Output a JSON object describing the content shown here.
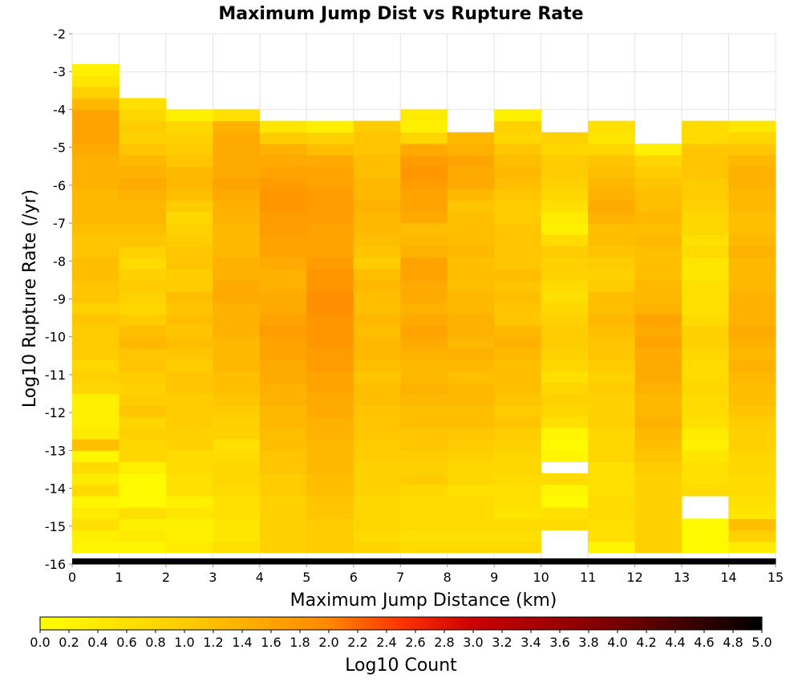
{
  "chart_data": {
    "type": "heatmap",
    "title": "Maximum Jump Dist vs Rupture Rate",
    "xlabel": "Maximum Jump Distance (km)",
    "ylabel": "Log10 Rupture Rate (/yr)",
    "colorbar_label": "Log10 Count",
    "xlim": [
      0,
      15
    ],
    "ylim": [
      -16,
      -2
    ],
    "x_ticks": [
      "0",
      "1",
      "2",
      "3",
      "4",
      "5",
      "6",
      "7",
      "8",
      "9",
      "10",
      "11",
      "12",
      "13",
      "14",
      "15"
    ],
    "y_ticks": [
      "-2",
      "-3",
      "-4",
      "-5",
      "-6",
      "-7",
      "-8",
      "-9",
      "-10",
      "-11",
      "-12",
      "-13",
      "-14",
      "-15",
      "-16"
    ],
    "color_range": [
      0.0,
      5.0
    ],
    "colorbar_ticks": [
      "0.0",
      "0.2",
      "0.4",
      "0.6",
      "0.8",
      "1.0",
      "1.2",
      "1.4",
      "1.6",
      "1.8",
      "2.0",
      "2.2",
      "2.4",
      "2.6",
      "2.8",
      "3.0",
      "3.2",
      "3.4",
      "3.6",
      "3.8",
      "4.0",
      "4.2",
      "4.4",
      "4.6",
      "4.8",
      "5.0"
    ],
    "colormap": [
      "#ffff00",
      "#ff9900",
      "#ff0000",
      "#880000",
      "#000000"
    ],
    "x_bins": [
      0,
      1,
      2,
      3,
      4,
      5,
      6,
      7,
      8,
      9,
      10,
      11,
      12,
      13,
      14
    ],
    "y_bin_width": 0.3,
    "y_bins_start": -16.0,
    "columns": [
      {
        "x": 0,
        "bottom": -16.0,
        "counts": [
          5.0,
          0.2,
          0.3,
          0.6,
          0.4,
          0.2,
          0.7,
          0.4,
          0.7,
          0.2,
          1.2,
          0.4,
          0.3,
          0.3,
          0.3,
          0.8,
          0.9,
          0.8,
          1.0,
          1.0,
          1.0,
          1.1,
          0.9,
          1.1,
          1.1,
          1.2,
          1.2,
          1.1,
          1.1,
          1.2,
          1.3,
          1.3,
          1.3,
          1.4,
          1.4,
          1.4,
          1.5,
          1.6,
          1.6,
          1.6,
          1.3,
          0.9,
          0.5,
          0.3
        ]
      },
      {
        "x": 1,
        "bottom": -16.0,
        "counts": [
          5.0,
          0.2,
          0.4,
          0.3,
          0.6,
          0.1,
          0.1,
          0.1,
          0.3,
          0.8,
          0.8,
          0.9,
          0.8,
          1.1,
          1.0,
          0.9,
          1.0,
          1.1,
          1.1,
          1.3,
          1.2,
          1.0,
          0.8,
          0.9,
          1.0,
          0.9,
          0.7,
          0.9,
          1.1,
          1.2,
          1.3,
          1.3,
          1.4,
          1.5,
          1.4,
          1.3,
          1.1,
          0.9,
          1.0,
          0.8,
          0.6
        ]
      },
      {
        "x": 2,
        "bottom": -16.0,
        "counts": [
          5.0,
          0.4,
          0.3,
          0.3,
          0.5,
          0.3,
          0.6,
          0.6,
          0.7,
          0.7,
          0.9,
          0.9,
          1.0,
          1.0,
          1.0,
          1.1,
          1.1,
          1.0,
          1.1,
          1.2,
          1.1,
          1.2,
          1.1,
          1.2,
          1.0,
          1.0,
          1.1,
          1.1,
          1.0,
          0.9,
          0.8,
          1.0,
          1.2,
          1.3,
          1.3,
          1.1,
          1.0,
          0.9,
          0.8,
          0.3
        ]
      },
      {
        "x": 3,
        "bottom": -16.0,
        "counts": [
          5.0,
          0.6,
          0.5,
          0.5,
          0.6,
          0.6,
          0.7,
          0.8,
          0.8,
          0.7,
          0.6,
          0.9,
          0.9,
          1.0,
          1.1,
          1.2,
          1.2,
          1.3,
          1.3,
          1.3,
          1.4,
          1.4,
          1.4,
          1.5,
          1.5,
          1.4,
          1.4,
          1.3,
          1.3,
          1.3,
          1.4,
          1.4,
          1.5,
          1.6,
          1.5,
          1.5,
          1.5,
          1.5,
          1.4,
          0.6
        ]
      },
      {
        "x": 4,
        "bottom": -16.0,
        "counts": [
          5.0,
          0.9,
          0.9,
          0.9,
          0.9,
          0.9,
          1.0,
          1.0,
          1.1,
          1.1,
          1.2,
          1.2,
          1.3,
          1.3,
          1.4,
          1.4,
          1.5,
          1.5,
          1.6,
          1.6,
          1.7,
          1.6,
          1.5,
          1.5,
          1.4,
          1.4,
          1.5,
          1.6,
          1.6,
          1.7,
          1.7,
          1.8,
          1.8,
          1.7,
          1.6,
          1.5,
          1.4,
          1.0,
          0.5
        ]
      },
      {
        "x": 5,
        "bottom": -16.0,
        "counts": [
          5.0,
          1.0,
          1.0,
          1.0,
          1.1,
          1.1,
          1.2,
          1.2,
          1.3,
          1.3,
          1.3,
          1.4,
          1.4,
          1.5,
          1.5,
          1.6,
          1.6,
          1.7,
          1.7,
          1.8,
          1.8,
          1.8,
          1.9,
          1.9,
          1.8,
          1.8,
          1.7,
          1.6,
          1.6,
          1.6,
          1.7,
          1.7,
          1.7,
          1.6,
          1.6,
          1.5,
          1.2,
          0.9,
          0.3
        ]
      },
      {
        "x": 6,
        "bottom": -16.0,
        "counts": [
          5.0,
          0.8,
          0.7,
          0.8,
          0.8,
          0.8,
          0.9,
          0.9,
          0.9,
          1.0,
          1.0,
          1.1,
          1.1,
          1.1,
          1.2,
          1.2,
          1.1,
          1.2,
          1.3,
          1.3,
          1.2,
          1.3,
          1.2,
          1.2,
          1.3,
          1.2,
          1.0,
          1.1,
          1.2,
          1.3,
          1.3,
          1.4,
          1.3,
          1.3,
          1.2,
          1.2,
          1.1,
          1.1,
          1.0
        ]
      },
      {
        "x": 7,
        "bottom": -16.0,
        "counts": [
          5.0,
          0.7,
          0.6,
          0.7,
          0.7,
          0.7,
          0.8,
          1.0,
          0.9,
          1.0,
          1.1,
          1.1,
          1.2,
          1.2,
          1.3,
          1.4,
          1.3,
          1.3,
          1.4,
          1.5,
          1.6,
          1.5,
          1.4,
          1.5,
          1.5,
          1.6,
          1.6,
          1.4,
          1.3,
          1.2,
          1.5,
          1.6,
          1.6,
          1.7,
          1.8,
          1.7,
          1.5,
          0.8,
          0.3,
          0.4
        ]
      },
      {
        "x": 8,
        "bottom": -16.0,
        "counts": [
          5.0,
          0.7,
          0.6,
          0.7,
          0.7,
          0.7,
          0.6,
          0.8,
          0.8,
          0.9,
          1.0,
          1.1,
          1.2,
          1.2,
          1.3,
          1.3,
          1.2,
          1.3,
          1.4,
          1.3,
          1.4,
          1.4,
          1.3,
          1.3,
          1.2,
          1.2,
          1.2,
          1.3,
          1.2,
          1.2,
          1.2,
          1.1,
          1.3,
          1.5,
          1.5,
          1.6,
          1.4,
          1.3
        ]
      },
      {
        "x": 9,
        "bottom": -16.0,
        "counts": [
          5.0,
          0.7,
          0.6,
          0.7,
          0.5,
          0.6,
          0.6,
          0.7,
          0.8,
          0.8,
          0.9,
          1.0,
          1.1,
          1.0,
          1.1,
          1.2,
          1.2,
          1.2,
          1.3,
          1.4,
          1.3,
          1.1,
          1.1,
          1.2,
          1.1,
          1.2,
          1.1,
          1.1,
          1.1,
          1.1,
          1.0,
          1.0,
          1.1,
          1.2,
          1.3,
          1.2,
          1.1,
          0.8,
          0.9,
          0.3
        ]
      },
      {
        "x": 10,
        "bottom": -16.0,
        "counts": [
          5.0,
          null,
          null,
          0.7,
          0.6,
          0.1,
          0.2,
          0.7,
          null,
          0.2,
          0.1,
          0.2,
          0.6,
          0.8,
          0.9,
          0.8,
          0.6,
          0.8,
          0.9,
          1.0,
          1.0,
          0.9,
          0.8,
          0.6,
          0.7,
          0.9,
          0.9,
          1.0,
          0.7,
          0.3,
          0.4,
          0.6,
          0.8,
          0.9,
          1.0,
          1.0,
          0.8,
          0.9
        ]
      },
      {
        "x": 11,
        "bottom": -16.0,
        "counts": [
          5.0,
          0.2,
          0.6,
          0.6,
          0.7,
          0.7,
          0.6,
          0.6,
          0.6,
          0.8,
          0.8,
          0.8,
          0.9,
          0.9,
          0.9,
          1.0,
          0.9,
          1.0,
          1.1,
          1.1,
          1.2,
          1.3,
          1.2,
          1.2,
          1.0,
          0.9,
          1.0,
          1.1,
          1.2,
          1.2,
          1.4,
          1.5,
          1.4,
          1.3,
          1.2,
          1.1,
          0.8,
          0.5,
          0.6
        ]
      },
      {
        "x": 12,
        "bottom": -16.0,
        "counts": [
          5.0,
          0.9,
          0.9,
          0.9,
          0.9,
          0.9,
          0.9,
          0.9,
          1.0,
          1.1,
          1.2,
          1.3,
          1.4,
          1.3,
          1.3,
          1.4,
          1.5,
          1.5,
          1.5,
          1.6,
          1.5,
          1.6,
          1.4,
          1.3,
          1.3,
          1.2,
          1.2,
          1.2,
          1.3,
          1.2,
          1.3,
          1.2,
          1.2,
          1.1,
          1.0,
          0.8,
          0.3
        ]
      },
      {
        "x": 13,
        "bottom": -16.0,
        "counts": [
          5.0,
          0.1,
          0.1,
          0.1,
          null,
          null,
          0.7,
          0.6,
          0.6,
          0.5,
          0.3,
          0.4,
          0.6,
          0.7,
          0.7,
          0.8,
          0.7,
          0.7,
          0.8,
          0.9,
          0.9,
          0.7,
          0.6,
          0.6,
          0.6,
          0.5,
          0.5,
          0.7,
          0.6,
          0.8,
          0.8,
          0.9,
          1.0,
          1.0,
          1.1,
          1.1,
          1.1,
          0.7,
          0.7
        ]
      },
      {
        "x": 14,
        "bottom": -16.0,
        "counts": [
          5.0,
          0.4,
          0.9,
          1.2,
          0.5,
          0.6,
          0.7,
          0.7,
          0.8,
          0.8,
          0.9,
          0.9,
          1.0,
          1.1,
          1.2,
          1.2,
          1.3,
          1.4,
          1.3,
          1.4,
          1.5,
          1.4,
          1.4,
          1.4,
          1.3,
          1.3,
          1.3,
          1.4,
          1.3,
          1.2,
          1.2,
          1.3,
          1.3,
          1.4,
          1.4,
          1.3,
          1.1,
          0.8,
          0.5
        ]
      }
    ]
  }
}
